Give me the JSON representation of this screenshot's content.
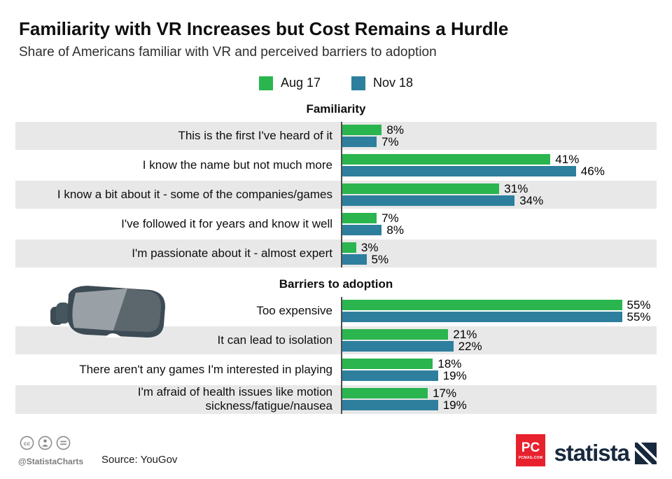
{
  "title": "Familiarity with VR Increases but Cost Remains a Hurdle",
  "subtitle": "Share of Americans familiar with VR and perceived barriers to adoption",
  "legend": [
    {
      "label": "Aug 17",
      "color": "#2ab54e"
    },
    {
      "label": "Nov 18",
      "color": "#2d7f9d"
    }
  ],
  "chart_data": {
    "type": "bar",
    "orientation": "horizontal",
    "unit": "%",
    "xlim": [
      0,
      60
    ],
    "series_names": [
      "Aug 17",
      "Nov 18"
    ],
    "sections": [
      {
        "header": "Familiarity",
        "rows": [
          {
            "label": "This is the first I've heard of it",
            "values": [
              8,
              7
            ]
          },
          {
            "label": "I know the name but not much more",
            "values": [
              41,
              46
            ]
          },
          {
            "label": "I know a bit about it - some of the companies/games",
            "values": [
              31,
              34
            ]
          },
          {
            "label": "I've followed it for years and know it well",
            "values": [
              7,
              8
            ]
          },
          {
            "label": "I'm passionate about it - almost expert",
            "values": [
              3,
              5
            ]
          }
        ]
      },
      {
        "header": "Barriers to adoption",
        "rows": [
          {
            "label": "Too expensive",
            "values": [
              55,
              55
            ]
          },
          {
            "label": "It can lead to isolation",
            "values": [
              21,
              22
            ]
          },
          {
            "label": "There aren't any games I'm interested in playing",
            "values": [
              18,
              19
            ]
          },
          {
            "label": "I'm afraid of health issues like motion sickness/fatigue/nausea",
            "values": [
              17,
              19
            ]
          }
        ]
      }
    ]
  },
  "icons": {
    "cc": "cc-license-icon",
    "attribution": "attribution-person-icon",
    "nd": "no-derivatives-icon",
    "illustration": "vr-headset-illustration",
    "brand_mark": "statista-logo-mark"
  },
  "colors": {
    "band": "#e8e8e8",
    "axis": "#4d4d4d",
    "brand_navy": "#18293e",
    "partner_red": "#e8222d"
  },
  "footer": {
    "handle": "@StatistaCharts",
    "source": "Source: YouGov",
    "partner_logo": "PC",
    "partner_sub": "PCMAG.COM",
    "brand": "statista"
  }
}
